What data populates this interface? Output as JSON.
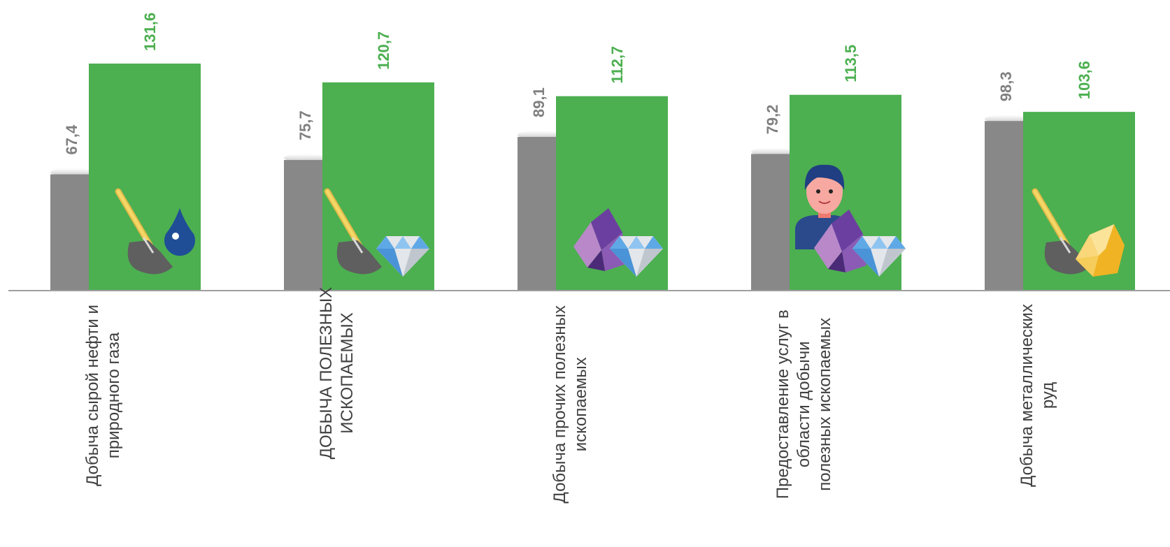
{
  "chart_data": {
    "type": "bar",
    "categories": [
      [
        "Добыча сырой нефти и",
        "природного газа"
      ],
      [
        "ДОБЫЧА ПОЛЕЗНЫХ",
        "ИСКОПАЕМЫХ"
      ],
      [
        "Добыча прочих полезных",
        "ископаемых"
      ],
      [
        "Предоставление услуг в",
        "области добычи",
        "полезных ископаемых"
      ],
      [
        "Добыча металлических",
        "руд"
      ]
    ],
    "series": [
      {
        "values": [
          67.4,
          75.7,
          89.1,
          79.2,
          98.3
        ],
        "labels": [
          "67,4",
          "75,7",
          "89,1",
          "79,2",
          "98,3"
        ]
      },
      {
        "values": [
          131.6,
          120.7,
          112.7,
          113.5,
          103.6
        ],
        "labels": [
          "131,6",
          "120,7",
          "112,7",
          "113,5",
          "103,6"
        ]
      }
    ],
    "ylim": [
      0,
      131.6
    ],
    "grid": false,
    "legend": "none",
    "icons": [
      [
        "shovel-icon",
        "oil-drop-icon"
      ],
      [
        "shovel-icon",
        "diamond-icon"
      ],
      [
        "crystal-icon",
        "diamond-icon"
      ],
      [
        "worker-icon",
        "crystal-icon",
        "diamond-icon"
      ],
      [
        "shovel-icon",
        "gold-nugget-icon"
      ]
    ],
    "colors": {
      "series0": "#888888",
      "series1": "#4caf50",
      "series0_label": "#808080",
      "series1_label": "#4caf50",
      "axis": "#9e9e9e"
    }
  }
}
